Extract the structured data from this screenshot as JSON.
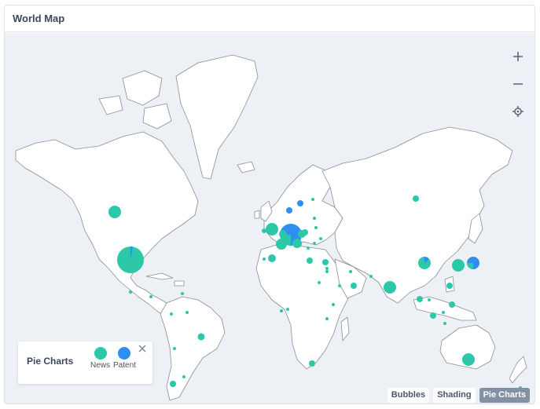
{
  "card": {
    "title": "World Map"
  },
  "controls": {
    "zoom_in_icon": "plus-icon",
    "zoom_out_icon": "minus-icon",
    "locate_icon": "crosshair-icon"
  },
  "legend": {
    "title": "Pie Charts",
    "items": [
      {
        "label": "News",
        "color": "#2cc8a8"
      },
      {
        "label": "Patent",
        "color": "#2f8ff0"
      }
    ],
    "close_icon": "close-icon"
  },
  "view_buttons": [
    {
      "label": "Bubbles",
      "active": false
    },
    {
      "label": "Shading",
      "active": false
    },
    {
      "label": "Pie Charts",
      "active": true
    }
  ],
  "colors": {
    "news": "#2cc8a8",
    "patent": "#2f8ff0",
    "ocean": "#edf0f5",
    "land": "#ffffff",
    "border": "#8a8f96"
  }
}
